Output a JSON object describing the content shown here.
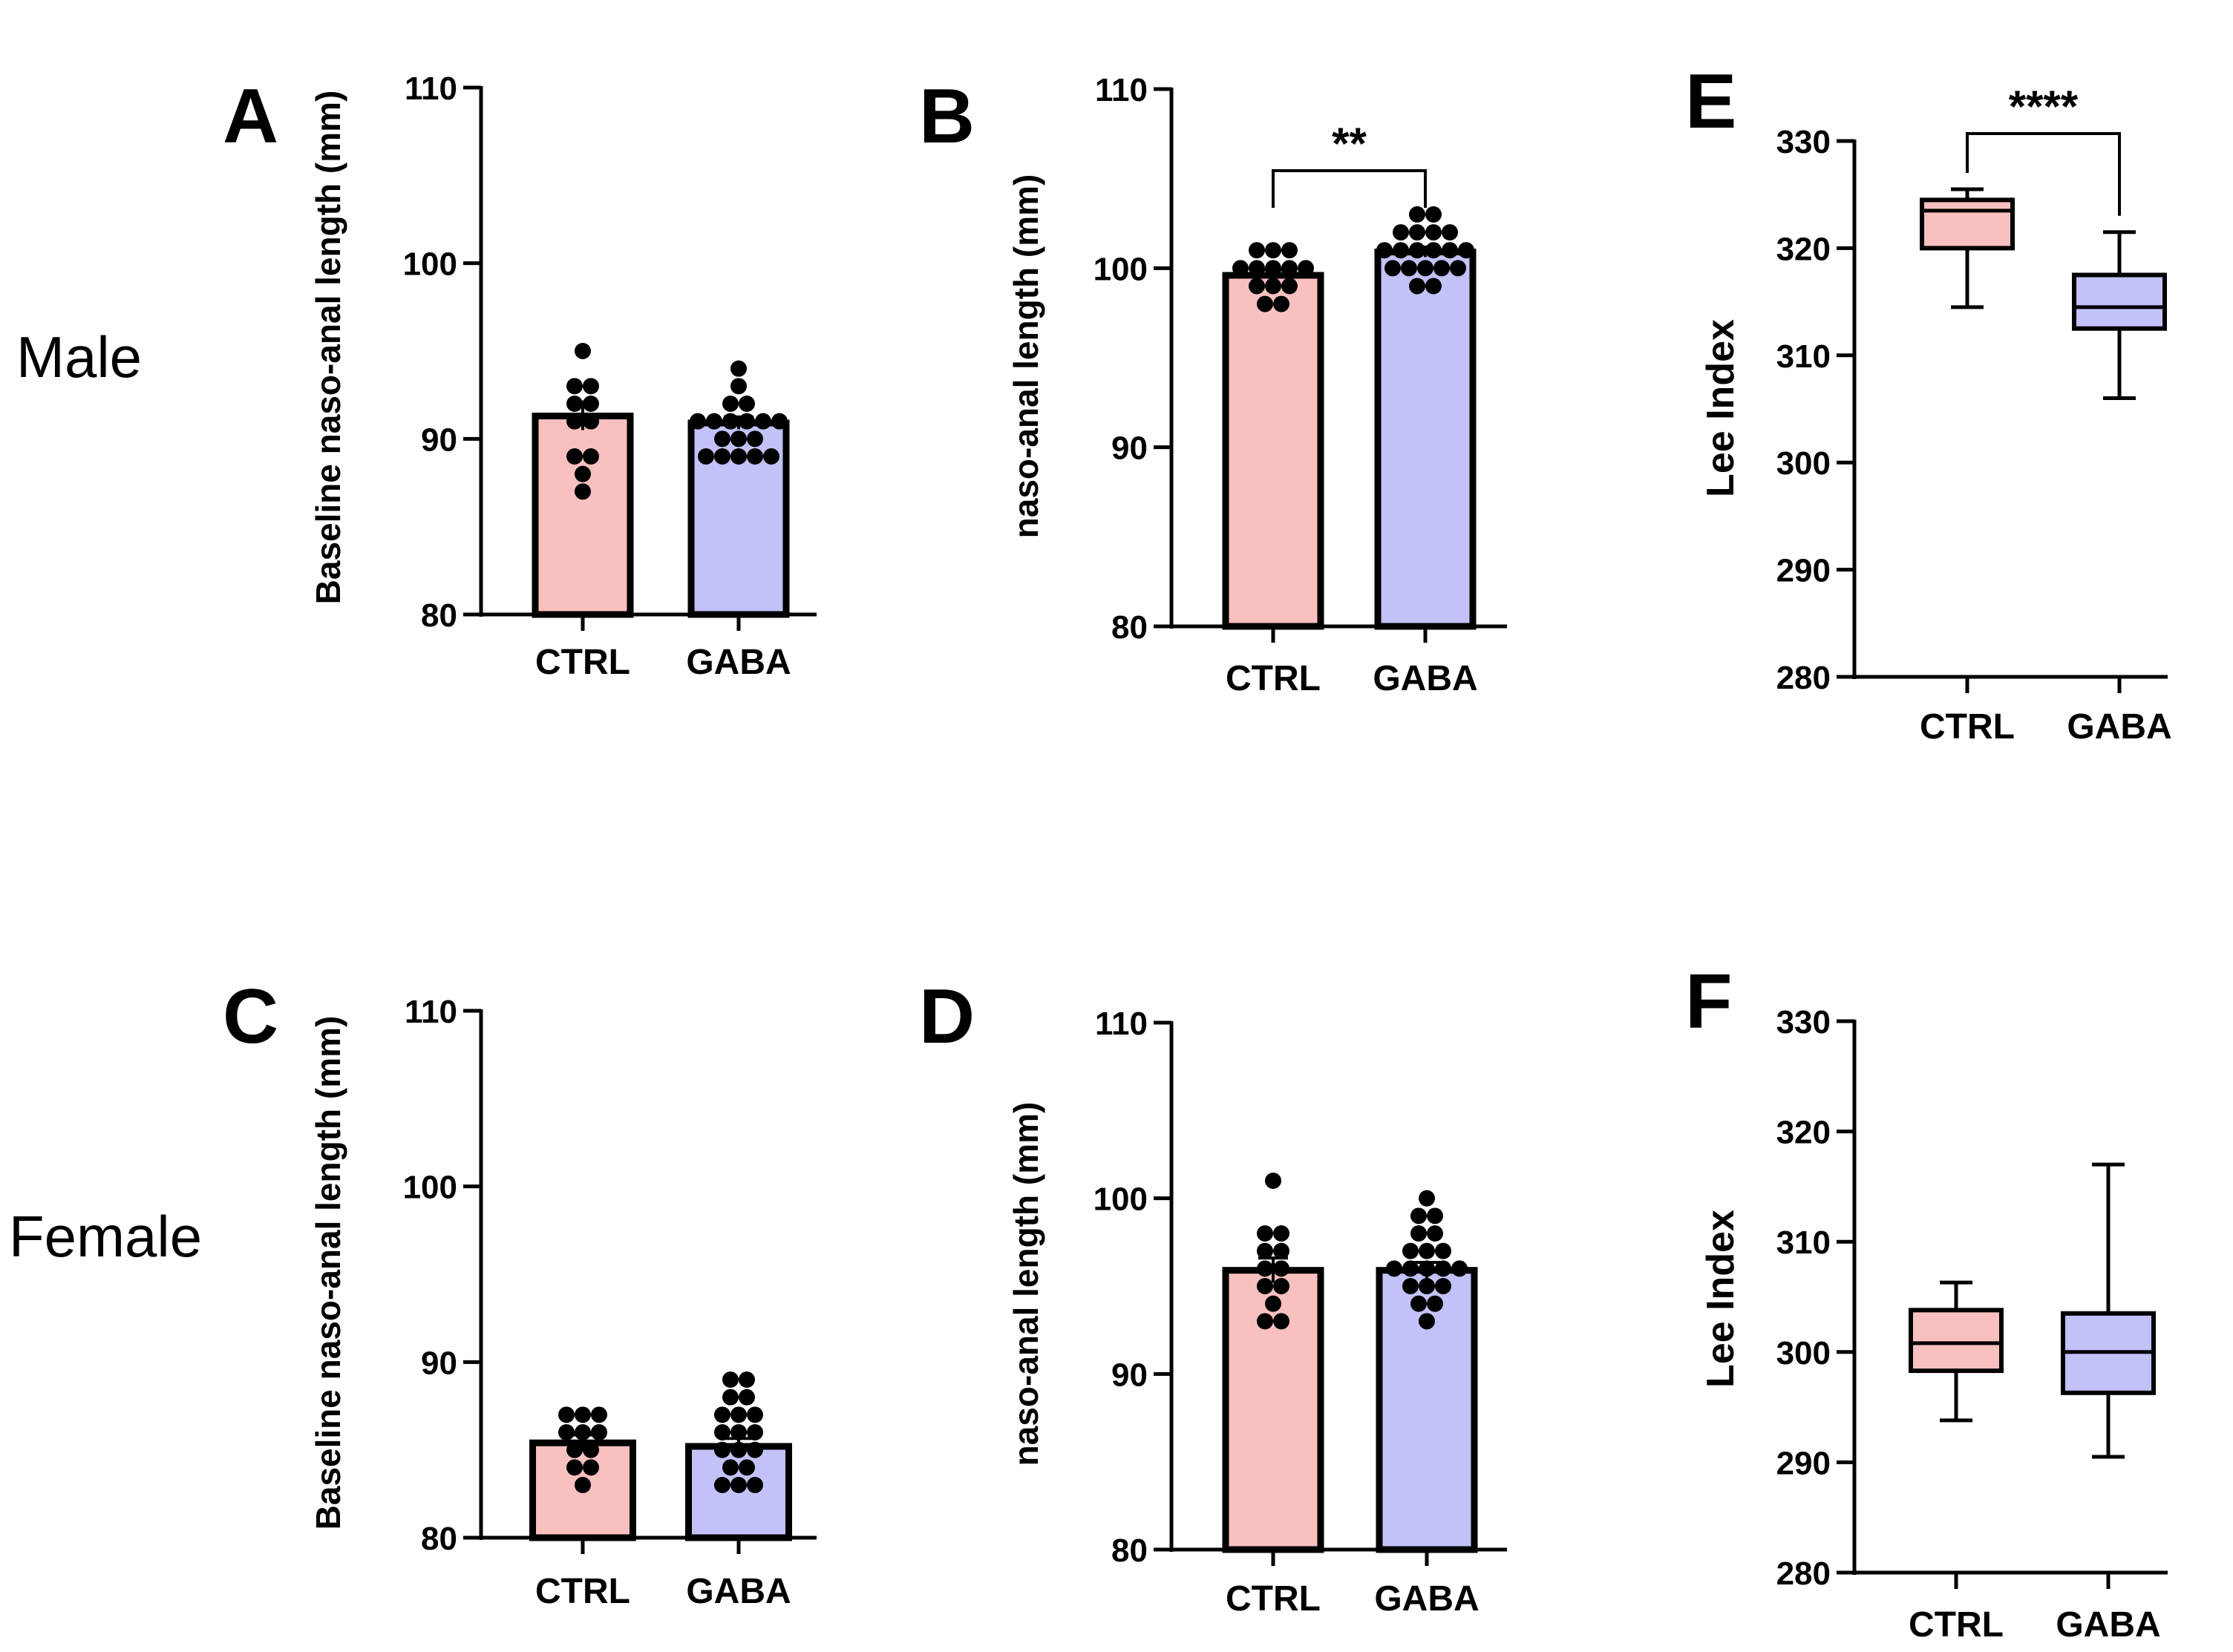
{
  "row_labels": {
    "male": "Male",
    "female": "Female"
  },
  "categories": [
    "CTRL",
    "GABA"
  ],
  "colors": {
    "ctrl": "#f9c0c0",
    "gaba": "#c2c2f8",
    "axis": "#000000",
    "point": "#000000"
  },
  "chart_data": [
    {
      "id": "A",
      "letter": "A",
      "type": "bar",
      "ylabel": "Baseline naso-anal length  (mm)",
      "ylim": [
        80,
        110
      ],
      "yticks": [
        "80",
        "90",
        "100",
        "110"
      ],
      "categories": [
        "CTRL",
        "GABA"
      ],
      "values": [
        91.3,
        90.9
      ],
      "sem": [
        0.8,
        0.35
      ],
      "points": [
        [
          95,
          93,
          93,
          92,
          92,
          91,
          91,
          89,
          89,
          88,
          87
        ],
        [
          94,
          93,
          92,
          92,
          91,
          91,
          91,
          91,
          91,
          91,
          90,
          90,
          90,
          89,
          89,
          89,
          89,
          89
        ]
      ],
      "significance": ""
    },
    {
      "id": "B",
      "letter": "B",
      "type": "bar",
      "ylabel": "naso-anal length  (mm)",
      "ylim": [
        80,
        110
      ],
      "yticks": [
        "80",
        "90",
        "100",
        "110"
      ],
      "categories": [
        "CTRL",
        "GABA"
      ],
      "values": [
        99.6,
        100.9
      ],
      "sem": [
        0.3,
        0.28
      ],
      "points": [
        [
          101,
          101,
          101,
          100,
          100,
          100,
          100,
          100,
          99,
          99,
          99,
          98,
          98
        ],
        [
          103,
          103,
          102,
          102,
          102,
          102,
          101,
          101,
          101,
          101,
          101,
          101,
          100,
          100,
          100,
          100,
          100,
          99,
          99
        ]
      ],
      "significance": "**"
    },
    {
      "id": "E",
      "letter": "E",
      "type": "box",
      "ylabel": "Lee Index",
      "ylim": [
        280,
        330
      ],
      "yticks": [
        "280",
        "290",
        "300",
        "310",
        "320",
        "330"
      ],
      "categories": [
        "CTRL",
        "GABA"
      ],
      "boxes": [
        {
          "min": 314.5,
          "q1": 320,
          "median": 323.5,
          "q3": 324.5,
          "max": 325.5
        },
        {
          "min": 306,
          "q1": 312.5,
          "median": 314.5,
          "q3": 317.5,
          "max": 321.5
        }
      ],
      "significance": "****"
    },
    {
      "id": "C",
      "letter": "C",
      "type": "bar",
      "ylabel": "Baseline naso-anal length  (mm)",
      "ylim": [
        80,
        110
      ],
      "yticks": [
        "80",
        "90",
        "100",
        "110"
      ],
      "categories": [
        "CTRL",
        "GABA"
      ],
      "values": [
        85.4,
        85.2
      ],
      "sem": [
        0.45,
        0.45
      ],
      "points": [
        [
          87,
          87,
          87,
          86,
          86,
          86,
          85,
          85,
          84,
          84,
          83
        ],
        [
          89,
          89,
          88,
          88,
          87,
          87,
          87,
          86,
          86,
          86,
          85,
          85,
          85,
          84,
          84,
          83,
          83,
          83
        ]
      ],
      "significance": ""
    },
    {
      "id": "D",
      "letter": "D",
      "type": "bar",
      "ylabel": "naso-anal length  (mm)",
      "ylim": [
        80,
        110
      ],
      "yticks": [
        "80",
        "90",
        "100",
        "110"
      ],
      "categories": [
        "CTRL",
        "GABA"
      ],
      "values": [
        95.9,
        95.9
      ],
      "sem": [
        0.7,
        0.45
      ],
      "points": [
        [
          101,
          98,
          98,
          97,
          97,
          96,
          96,
          95,
          95,
          94,
          93,
          93
        ],
        [
          100,
          99,
          99,
          98,
          98,
          97,
          97,
          97,
          96,
          96,
          96,
          96,
          96,
          95,
          95,
          95,
          94,
          94,
          93
        ]
      ],
      "significance": ""
    },
    {
      "id": "F",
      "letter": "F",
      "type": "box",
      "ylabel": "Lee Index",
      "ylim": [
        280,
        330
      ],
      "yticks": [
        "280",
        "290",
        "300",
        "310",
        "320",
        "330"
      ],
      "categories": [
        "CTRL",
        "GABA"
      ],
      "boxes": [
        {
          "min": 293.8,
          "q1": 298.3,
          "median": 300.8,
          "q3": 303.8,
          "max": 306.3
        },
        {
          "min": 290.5,
          "q1": 296.3,
          "median": 300,
          "q3": 303.5,
          "max": 317
        }
      ],
      "significance": ""
    }
  ]
}
